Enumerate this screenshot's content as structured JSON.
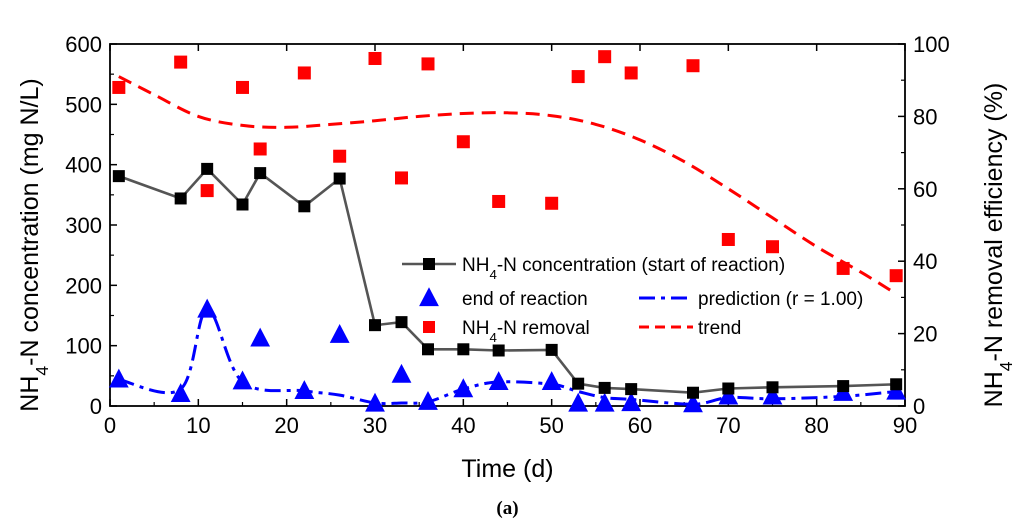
{
  "chart_data": {
    "type": "line",
    "caption": "(a)",
    "xlabel": "Time (d)",
    "ylabel_left": {
      "base": "NH",
      "sub": "4",
      "rest": "-N concentration (mg N/L)"
    },
    "ylabel_right": {
      "base": "NH",
      "sub": "4",
      "rest": "-N removal efficiency (%)"
    },
    "xlim": [
      0,
      90
    ],
    "ylim_left": [
      0,
      600
    ],
    "ylim_right": [
      0,
      100
    ],
    "x_ticks": [
      "0",
      "10",
      "20",
      "30",
      "40",
      "50",
      "60",
      "70",
      "80",
      "90"
    ],
    "y_left_ticks": [
      "0",
      "100",
      "200",
      "300",
      "400",
      "500",
      "600"
    ],
    "y_right_ticks": [
      "0",
      "20",
      "40",
      "60",
      "80",
      "100"
    ],
    "colors": {
      "black": "#000000",
      "line_gray": "#555555",
      "blue": "#0000ff",
      "red": "#ff0000"
    },
    "series": [
      {
        "name": {
          "base": "NH",
          "sub": "4",
          "rest": "-N concentration (start of reaction)"
        },
        "axis": "left",
        "marker": "square",
        "style": "solid-line",
        "x": [
          1,
          8,
          11,
          15,
          17,
          22,
          26,
          30,
          33,
          36,
          40,
          44,
          50,
          53,
          56,
          59,
          66,
          70,
          75,
          83,
          89
        ],
        "y": [
          381,
          344,
          393,
          334,
          386,
          331,
          377,
          134,
          139,
          94,
          94,
          92,
          93,
          37,
          30,
          28,
          22,
          29,
          31,
          33,
          36
        ]
      },
      {
        "name": {
          "base": "",
          "sub": "",
          "rest": "end of reaction"
        },
        "axis": "left",
        "marker": "triangle",
        "style": "markers",
        "x": [
          1,
          8,
          11,
          15,
          17,
          22,
          26,
          30,
          33,
          36,
          40,
          44,
          50,
          53,
          56,
          59,
          66,
          70,
          75,
          83,
          89
        ],
        "y": [
          44,
          20,
          160,
          41,
          112,
          25,
          118,
          4,
          52,
          7,
          28,
          40,
          40,
          4,
          4,
          5,
          3,
          16,
          16,
          22,
          24
        ]
      },
      {
        "name": {
          "base": "",
          "sub": "",
          "rest": "prediction (r = 1.00)"
        },
        "axis": "left",
        "marker": "none",
        "style": "dash-dot",
        "x": [
          1,
          8,
          11,
          15,
          22,
          26,
          30,
          33,
          36,
          40,
          44,
          50,
          53,
          56,
          59,
          66,
          70,
          75,
          83,
          89
        ],
        "y": [
          44,
          28,
          160,
          40,
          25,
          18,
          5,
          5,
          7,
          28,
          40,
          36,
          24,
          14,
          11,
          3,
          14,
          12,
          16,
          24
        ]
      },
      {
        "name": {
          "base": "NH",
          "sub": "4",
          "rest": "-N removal"
        },
        "axis": "right",
        "marker": "square",
        "style": "markers",
        "x": [
          1,
          8,
          11,
          15,
          17,
          22,
          26,
          30,
          33,
          36,
          40,
          44,
          50,
          53,
          56,
          59,
          66,
          70,
          75,
          83,
          89
        ],
        "y": [
          88,
          95,
          59.5,
          88,
          71,
          92,
          69,
          96,
          63,
          94.5,
          73,
          56.5,
          56,
          91,
          96.5,
          92,
          94,
          46,
          44,
          38,
          36
        ]
      },
      {
        "name": {
          "base": "",
          "sub": "",
          "rest": "trend"
        },
        "axis": "right",
        "marker": "none",
        "style": "dashed",
        "x": [
          1,
          5,
          10,
          15,
          20,
          25,
          30,
          35,
          40,
          45,
          50,
          55,
          60,
          65,
          70,
          75,
          80,
          85,
          89
        ],
        "y": [
          91,
          86,
          80,
          77.5,
          77,
          77.8,
          78.8,
          80,
          80.8,
          81,
          80.2,
          77.8,
          73.5,
          67.5,
          60,
          52,
          44,
          37,
          31
        ]
      }
    ]
  }
}
